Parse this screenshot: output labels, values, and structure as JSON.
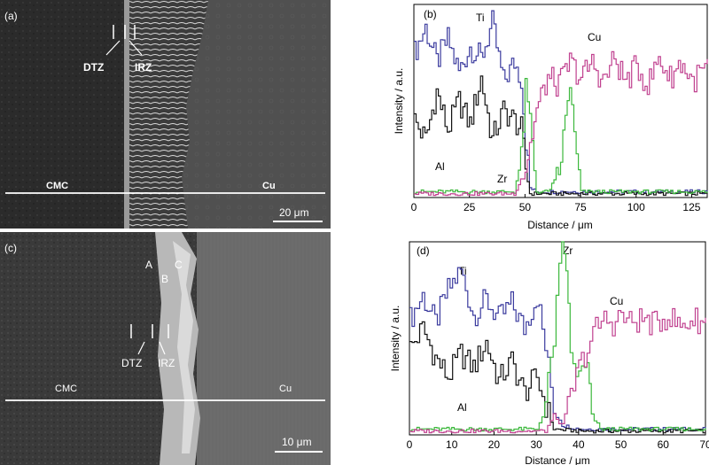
{
  "panels": [
    {
      "id": "a",
      "label": "(a)",
      "zones": [
        "DTZ",
        "IRZ"
      ],
      "regions": [
        "CMC",
        "Cu"
      ],
      "scale_bar": "20 μm"
    },
    {
      "id": "c",
      "label": "(c)",
      "points": [
        "A",
        "B",
        "C"
      ],
      "zones": [
        "DTZ",
        "IRZ"
      ],
      "regions": [
        "CMC",
        "Cu"
      ],
      "scale_bar": "10 μm"
    }
  ],
  "colors": {
    "Ti": "#3b3b9e",
    "Al": "#111111",
    "Zr": "#3cb83c",
    "Cu": "#c0408f"
  },
  "chart_data": [
    {
      "type": "line",
      "label": "(b)",
      "xlabel": "Distance / μm",
      "ylabel": "Intensity / a.u.",
      "xlim": [
        0,
        132
      ],
      "ylim": [
        0,
        100
      ],
      "xticks": [
        0,
        25,
        50,
        75,
        100,
        125
      ],
      "series": [
        {
          "name": "Ti",
          "points": [
            [
              0,
              75
            ],
            [
              5,
              88
            ],
            [
              10,
              70
            ],
            [
              15,
              82
            ],
            [
              20,
              65
            ],
            [
              25,
              78
            ],
            [
              30,
              72
            ],
            [
              35,
              90
            ],
            [
              40,
              60
            ],
            [
              45,
              70
            ],
            [
              48,
              62
            ],
            [
              50,
              30
            ],
            [
              52,
              5
            ],
            [
              55,
              3
            ],
            [
              75,
              3
            ],
            [
              100,
              3
            ],
            [
              132,
              3
            ]
          ]
        },
        {
          "name": "Al",
          "points": [
            [
              0,
              40
            ],
            [
              5,
              30
            ],
            [
              10,
              55
            ],
            [
              15,
              35
            ],
            [
              20,
              50
            ],
            [
              25,
              38
            ],
            [
              30,
              62
            ],
            [
              35,
              30
            ],
            [
              40,
              45
            ],
            [
              45,
              40
            ],
            [
              48,
              35
            ],
            [
              50,
              15
            ],
            [
              52,
              2
            ],
            [
              75,
              2
            ],
            [
              132,
              2
            ]
          ]
        },
        {
          "name": "Zr",
          "points": [
            [
              0,
              3
            ],
            [
              45,
              3
            ],
            [
              48,
              20
            ],
            [
              50,
              55
            ],
            [
              52,
              40
            ],
            [
              55,
              3
            ],
            [
              60,
              3
            ],
            [
              65,
              12
            ],
            [
              68,
              40
            ],
            [
              70,
              60
            ],
            [
              72,
              30
            ],
            [
              75,
              3
            ],
            [
              100,
              3
            ],
            [
              132,
              3
            ]
          ]
        },
        {
          "name": "Cu",
          "points": [
            [
              0,
              2
            ],
            [
              45,
              2
            ],
            [
              50,
              15
            ],
            [
              55,
              45
            ],
            [
              60,
              62
            ],
            [
              65,
              58
            ],
            [
              70,
              70
            ],
            [
              75,
              62
            ],
            [
              80,
              70
            ],
            [
              85,
              60
            ],
            [
              90,
              72
            ],
            [
              95,
              60
            ],
            [
              100,
              68
            ],
            [
              105,
              58
            ],
            [
              110,
              72
            ],
            [
              115,
              62
            ],
            [
              120,
              70
            ],
            [
              125,
              60
            ],
            [
              132,
              68
            ]
          ]
        }
      ]
    },
    {
      "type": "line",
      "label": "(d)",
      "xlabel": "Distance / μm",
      "ylabel": "Intensity / a.u.",
      "xlim": [
        0,
        70
      ],
      "ylim": [
        0,
        100
      ],
      "xticks": [
        0,
        10,
        20,
        30,
        40,
        50,
        60,
        70
      ],
      "series": [
        {
          "name": "Ti",
          "points": [
            [
              0,
              60
            ],
            [
              3,
              72
            ],
            [
              6,
              58
            ],
            [
              9,
              75
            ],
            [
              12,
              85
            ],
            [
              15,
              62
            ],
            [
              18,
              70
            ],
            [
              21,
              60
            ],
            [
              24,
              68
            ],
            [
              27,
              55
            ],
            [
              30,
              72
            ],
            [
              32,
              45
            ],
            [
              34,
              15
            ],
            [
              36,
              5
            ],
            [
              40,
              3
            ],
            [
              50,
              3
            ],
            [
              70,
              3
            ]
          ]
        },
        {
          "name": "Al",
          "points": [
            [
              0,
              45
            ],
            [
              3,
              55
            ],
            [
              6,
              40
            ],
            [
              9,
              30
            ],
            [
              12,
              42
            ],
            [
              15,
              35
            ],
            [
              18,
              48
            ],
            [
              21,
              28
            ],
            [
              24,
              38
            ],
            [
              27,
              22
            ],
            [
              30,
              30
            ],
            [
              32,
              15
            ],
            [
              34,
              3
            ],
            [
              40,
              2
            ],
            [
              70,
              2
            ]
          ]
        },
        {
          "name": "Zr",
          "points": [
            [
              0,
              3
            ],
            [
              30,
              3
            ],
            [
              32,
              15
            ],
            [
              34,
              50
            ],
            [
              36,
              100
            ],
            [
              37,
              88
            ],
            [
              38,
              40
            ],
            [
              40,
              30
            ],
            [
              42,
              35
            ],
            [
              43,
              10
            ],
            [
              45,
              3
            ],
            [
              70,
              3
            ]
          ]
        },
        {
          "name": "Cu",
          "points": [
            [
              0,
              2
            ],
            [
              32,
              2
            ],
            [
              34,
              10
            ],
            [
              36,
              5
            ],
            [
              38,
              20
            ],
            [
              40,
              35
            ],
            [
              42,
              45
            ],
            [
              44,
              55
            ],
            [
              46,
              60
            ],
            [
              48,
              58
            ],
            [
              50,
              62
            ],
            [
              52,
              58
            ],
            [
              55,
              60
            ],
            [
              58,
              57
            ],
            [
              61,
              62
            ],
            [
              64,
              56
            ],
            [
              67,
              60
            ],
            [
              70,
              58
            ]
          ]
        }
      ]
    }
  ]
}
